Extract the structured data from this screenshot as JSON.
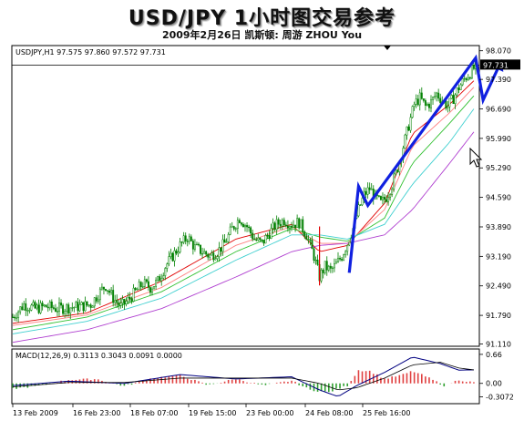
{
  "header": {
    "title": "USD/JPY 1小时图交易参考",
    "subtitle": "2009年2月26日  凯斯顿: 周游 ZHOU You"
  },
  "colors": {
    "candle": "#008000",
    "ma_red": "#e00000",
    "ma_pink": "#ff8080",
    "ma_green": "#30c030",
    "ma_cyan": "#40d0d0",
    "ma_purple": "#b040d0",
    "arrow": "#1020e0",
    "macd_pos": "#e04040",
    "macd_neg": "#30a030",
    "macd_line": "#000080",
    "signal_line": "#000000",
    "grid": "#c0c0c0"
  },
  "chart_data": [
    {
      "type": "candlestick",
      "symbol_label": "USDJPY,H1  97.575 97.860 97.572 97.731",
      "ylim": [
        91.1,
        98.15
      ],
      "y_ticks": [
        "98.070",
        "97.390",
        "96.690",
        "95.990",
        "95.290",
        "94.590",
        "93.890",
        "93.190",
        "92.490",
        "91.790",
        "91.110"
      ],
      "y_tick_values": [
        98.07,
        97.39,
        96.69,
        95.99,
        95.29,
        94.59,
        93.89,
        93.19,
        92.49,
        91.79,
        91.11
      ],
      "current_price": "97.731",
      "current_value": 97.731,
      "x_ticks": [
        "13 Feb 2009",
        "16 Feb 23:00",
        "18 Feb 07:00",
        "19 Feb 15:00",
        "23 Feb 00:00",
        "24 Feb 08:00",
        "25 Feb 16:00"
      ],
      "price_path": [
        [
          0,
          91.75
        ],
        [
          6,
          92.05
        ],
        [
          12,
          91.95
        ],
        [
          18,
          92.0
        ],
        [
          24,
          91.95
        ],
        [
          30,
          91.98
        ],
        [
          36,
          92.0
        ],
        [
          42,
          92.05
        ],
        [
          46,
          92.3
        ],
        [
          50,
          92.5
        ],
        [
          54,
          92.2
        ],
        [
          58,
          92.0
        ],
        [
          62,
          92.15
        ],
        [
          66,
          92.35
        ],
        [
          70,
          92.55
        ],
        [
          74,
          92.45
        ],
        [
          78,
          92.6
        ],
        [
          82,
          92.95
        ],
        [
          86,
          93.2
        ],
        [
          90,
          93.45
        ],
        [
          94,
          93.65
        ],
        [
          98,
          93.4
        ],
        [
          102,
          93.3
        ],
        [
          106,
          93.2
        ],
        [
          110,
          93.3
        ],
        [
          114,
          93.5
        ],
        [
          118,
          93.85
        ],
        [
          122,
          94.1
        ],
        [
          126,
          93.9
        ],
        [
          130,
          93.6
        ],
        [
          134,
          93.5
        ],
        [
          138,
          93.75
        ],
        [
          142,
          93.95
        ],
        [
          146,
          94.05
        ],
        [
          150,
          93.95
        ],
        [
          154,
          94.0
        ],
        [
          158,
          93.7
        ],
        [
          162,
          93.2
        ],
        [
          165,
          92.7
        ],
        [
          168,
          92.95
        ],
        [
          171,
          92.85
        ],
        [
          174,
          93.0
        ],
        [
          177,
          93.2
        ],
        [
          180,
          93.5
        ],
        [
          183,
          93.85
        ],
        [
          186,
          94.3
        ],
        [
          189,
          94.65
        ],
        [
          192,
          94.8
        ],
        [
          195,
          94.6
        ],
        [
          198,
          94.45
        ],
        [
          201,
          94.6
        ],
        [
          204,
          94.9
        ],
        [
          207,
          95.3
        ],
        [
          210,
          95.8
        ],
        [
          213,
          96.3
        ],
        [
          216,
          96.8
        ],
        [
          219,
          96.95
        ],
        [
          222,
          96.75
        ],
        [
          225,
          96.85
        ],
        [
          228,
          97.05
        ],
        [
          231,
          96.9
        ],
        [
          234,
          96.75
        ],
        [
          237,
          96.95
        ],
        [
          240,
          97.2
        ],
        [
          243,
          97.4
        ],
        [
          246,
          97.55
        ],
        [
          249,
          97.7
        ]
      ],
      "moving_averages": [
        {
          "points": [
            [
              0,
              91.6
            ],
            [
              40,
              91.85
            ],
            [
              80,
              92.6
            ],
            [
              120,
              93.6
            ],
            [
              150,
              93.95
            ],
            [
              165,
              93.3
            ],
            [
              180,
              93.45
            ],
            [
              200,
              94.45
            ],
            [
              215,
              96.1
            ],
            [
              235,
              96.8
            ],
            [
              249,
              97.4
            ]
          ]
        },
        {
          "points": [
            [
              0,
              91.55
            ],
            [
              40,
              91.8
            ],
            [
              80,
              92.45
            ],
            [
              120,
              93.45
            ],
            [
              150,
              93.9
            ],
            [
              165,
              93.5
            ],
            [
              180,
              93.5
            ],
            [
              200,
              94.3
            ],
            [
              215,
              95.8
            ],
            [
              235,
              96.6
            ],
            [
              249,
              97.25
            ]
          ]
        },
        {
          "points": [
            [
              0,
              91.45
            ],
            [
              40,
              91.75
            ],
            [
              80,
              92.35
            ],
            [
              120,
              93.3
            ],
            [
              150,
              93.85
            ],
            [
              165,
              93.65
            ],
            [
              180,
              93.55
            ],
            [
              200,
              94.1
            ],
            [
              215,
              95.4
            ],
            [
              235,
              96.35
            ],
            [
              249,
              97.05
            ]
          ]
        },
        {
          "points": [
            [
              0,
              91.35
            ],
            [
              40,
              91.65
            ],
            [
              80,
              92.2
            ],
            [
              120,
              93.1
            ],
            [
              150,
              93.7
            ],
            [
              165,
              93.7
            ],
            [
              180,
              93.6
            ],
            [
              200,
              93.95
            ],
            [
              215,
              94.9
            ],
            [
              235,
              95.9
            ],
            [
              249,
              96.75
            ]
          ]
        },
        {
          "points": [
            [
              0,
              91.15
            ],
            [
              40,
              91.45
            ],
            [
              80,
              91.95
            ],
            [
              120,
              92.7
            ],
            [
              150,
              93.3
            ],
            [
              165,
              93.45
            ],
            [
              180,
              93.5
            ],
            [
              200,
              93.7
            ],
            [
              215,
              94.3
            ],
            [
              235,
              95.4
            ],
            [
              249,
              96.2
            ]
          ]
        }
      ],
      "arrow_path": [
        [
          181,
          92.8
        ],
        [
          186,
          94.85
        ],
        [
          191,
          94.4
        ],
        [
          249,
          97.9
        ],
        [
          253,
          96.9
        ],
        [
          262,
          97.75
        ]
      ]
    },
    {
      "type": "bar",
      "label": "MACD(12,26,9)  0.3113 0.3043 0.0091 0.0000",
      "ylim": [
        -0.42,
        0.72
      ],
      "y_ticks": [
        "0.66",
        "0.00",
        "-0.3072"
      ],
      "y_tick_values": [
        0.66,
        0.0,
        -0.3072
      ],
      "histogram": [
        [
          0,
          -0.12
        ],
        [
          15,
          -0.05
        ],
        [
          30,
          0.08
        ],
        [
          45,
          0.1
        ],
        [
          60,
          -0.06
        ],
        [
          75,
          0.12
        ],
        [
          90,
          0.18
        ],
        [
          105,
          -0.04
        ],
        [
          120,
          0.1
        ],
        [
          135,
          -0.05
        ],
        [
          150,
          0.06
        ],
        [
          160,
          -0.15
        ],
        [
          170,
          -0.2
        ],
        [
          180,
          -0.05
        ],
        [
          186,
          0.3
        ],
        [
          192,
          0.28
        ],
        [
          200,
          0.1
        ],
        [
          210,
          0.2
        ],
        [
          215,
          0.28
        ],
        [
          222,
          0.16
        ],
        [
          232,
          -0.05
        ],
        [
          240,
          0.08
        ],
        [
          249,
          0.01
        ]
      ],
      "macd_line": [
        [
          0,
          -0.05
        ],
        [
          30,
          0.05
        ],
        [
          60,
          0.0
        ],
        [
          90,
          0.2
        ],
        [
          120,
          0.1
        ],
        [
          150,
          0.15
        ],
        [
          165,
          -0.15
        ],
        [
          175,
          -0.3
        ],
        [
          185,
          -0.05
        ],
        [
          200,
          0.25
        ],
        [
          215,
          0.6
        ],
        [
          230,
          0.45
        ],
        [
          240,
          0.3
        ],
        [
          249,
          0.31
        ]
      ],
      "signal_line": [
        [
          0,
          -0.08
        ],
        [
          30,
          0.02
        ],
        [
          60,
          0.02
        ],
        [
          90,
          0.12
        ],
        [
          120,
          0.12
        ],
        [
          150,
          0.12
        ],
        [
          165,
          0.0
        ],
        [
          175,
          -0.15
        ],
        [
          185,
          -0.1
        ],
        [
          200,
          0.12
        ],
        [
          215,
          0.42
        ],
        [
          230,
          0.48
        ],
        [
          240,
          0.35
        ],
        [
          249,
          0.3
        ]
      ]
    }
  ]
}
